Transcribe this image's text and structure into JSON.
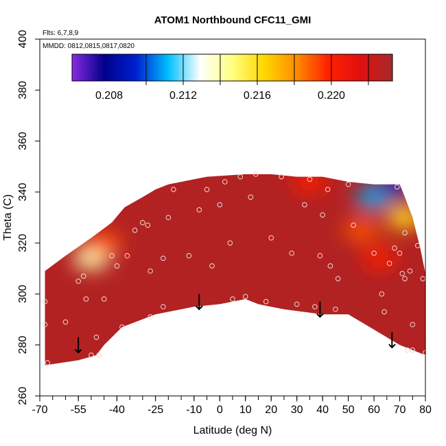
{
  "chart_data": {
    "type": "heatmap",
    "title": "ATOM1 Northbound CFC11_GMI",
    "annotations": [
      "Flts: 6,7,8,9",
      "MMDD: 0812,0815,0817,0820"
    ],
    "xlabel": "Latitude (deg N)",
    "ylabel": "Theta (C)",
    "xlim": [
      -70,
      80
    ],
    "ylim": [
      260,
      400
    ],
    "x_ticks": [
      -70,
      -55,
      -40,
      -25,
      -10,
      0,
      10,
      20,
      30,
      40,
      50,
      60,
      70,
      80
    ],
    "x_tick_labels": [
      "-70",
      "-55",
      "-40",
      "-25",
      "-10",
      "0",
      "10",
      "20",
      "30",
      "40",
      "50",
      "60",
      "70",
      "80"
    ],
    "x_minor_step": 5,
    "y_ticks": [
      260,
      280,
      300,
      320,
      340,
      360,
      380,
      400
    ],
    "y_tick_labels": [
      "260",
      "280",
      "300",
      "320",
      "340",
      "360",
      "380",
      "400"
    ],
    "colorbar": {
      "min": 0.206,
      "max": 0.2233,
      "tick_values": [
        0.208,
        0.212,
        0.216,
        0.22
      ],
      "tick_labels": [
        "0.208",
        "0.212",
        "0.216",
        "0.220"
      ],
      "divisions": [
        0.21,
        0.212,
        0.214,
        0.216,
        0.218,
        0.22,
        0.222
      ],
      "colors": [
        "#8a2be2",
        "#00008b",
        "#0020d0",
        "#00bfff",
        "#ffffff",
        "#ffff80",
        "#ffd700",
        "#ff8c00",
        "#ff2000",
        "#e01010",
        "#a52a2a"
      ]
    },
    "data_region": {
      "top_boundary": [
        [
          -68,
          309
        ],
        [
          -60,
          315
        ],
        [
          -50,
          322
        ],
        [
          -42,
          328
        ],
        [
          -37,
          334
        ],
        [
          -30,
          338
        ],
        [
          -25,
          341
        ],
        [
          -20,
          343
        ],
        [
          -10,
          345
        ],
        [
          -5,
          346
        ],
        [
          10,
          347
        ],
        [
          20,
          347
        ],
        [
          30,
          346
        ],
        [
          40,
          346
        ],
        [
          50,
          344
        ],
        [
          60,
          343
        ],
        [
          70,
          343
        ],
        [
          72,
          338
        ],
        [
          75,
          330
        ],
        [
          78,
          318
        ],
        [
          80,
          308
        ]
      ],
      "bottom_boundary": [
        [
          -68,
          272
        ],
        [
          -55,
          274
        ],
        [
          -48,
          276
        ],
        [
          -45,
          280
        ],
        [
          -38,
          287
        ],
        [
          -25,
          292
        ],
        [
          -10,
          295
        ],
        [
          0,
          296
        ],
        [
          10,
          298
        ],
        [
          15,
          296
        ],
        [
          25,
          294
        ],
        [
          40,
          292
        ],
        [
          50,
          292
        ],
        [
          60,
          286
        ],
        [
          70,
          280
        ],
        [
          80,
          276
        ]
      ],
      "fill_color": "#b22222",
      "features": [
        {
          "lon_lat_center": [
            -50,
            314
          ],
          "value": 0.214
        },
        {
          "lon_lat_center": [
            -45,
            320
          ],
          "value": 0.219
        },
        {
          "lon_lat_center": [
            35,
            344
          ],
          "value": 0.22
        },
        {
          "lon_lat_center": [
            60,
            338
          ],
          "value": 0.211
        },
        {
          "lon_lat_center": [
            68,
            342
          ],
          "value": 0.207
        },
        {
          "lon_lat_center": [
            72,
            330
          ],
          "value": 0.216
        },
        {
          "lon_lat_center": [
            55,
            325
          ],
          "value": 0.219
        },
        {
          "lon_lat_center": [
            62,
            314
          ],
          "value": 0.22
        }
      ]
    },
    "tropopause_arrows": [
      [
        -55,
        283
      ],
      [
        -8,
        300
      ],
      [
        39,
        297
      ],
      [
        67,
        285
      ]
    ],
    "observations": [
      {
        "x": -68,
        "y": 297
      },
      {
        "x": -68,
        "y": 288
      },
      {
        "x": -67,
        "y": 273
      },
      {
        "x": -60,
        "y": 289
      },
      {
        "x": -55,
        "y": 305
      },
      {
        "x": -53,
        "y": 307
      },
      {
        "x": -52,
        "y": 298
      },
      {
        "x": -50,
        "y": 276
      },
      {
        "x": -48,
        "y": 283
      },
      {
        "x": -47,
        "y": 276
      },
      {
        "x": -45,
        "y": 298
      },
      {
        "x": -42,
        "y": 315
      },
      {
        "x": -40,
        "y": 311
      },
      {
        "x": -38,
        "y": 287
      },
      {
        "x": -36,
        "y": 315
      },
      {
        "x": -33,
        "y": 325
      },
      {
        "x": -30,
        "y": 328
      },
      {
        "x": -28,
        "y": 327
      },
      {
        "x": -27,
        "y": 309
      },
      {
        "x": -27,
        "y": 291
      },
      {
        "x": -22,
        "y": 314
      },
      {
        "x": -22,
        "y": 295
      },
      {
        "x": -20,
        "y": 330
      },
      {
        "x": -18,
        "y": 341
      },
      {
        "x": -12,
        "y": 315
      },
      {
        "x": -8,
        "y": 333
      },
      {
        "x": -5,
        "y": 341
      },
      {
        "x": -3,
        "y": 311
      },
      {
        "x": 0,
        "y": 335
      },
      {
        "x": 2,
        "y": 344
      },
      {
        "x": 4,
        "y": 320
      },
      {
        "x": 5,
        "y": 298
      },
      {
        "x": 8,
        "y": 346
      },
      {
        "x": 10,
        "y": 299
      },
      {
        "x": 12,
        "y": 338
      },
      {
        "x": 14,
        "y": 347
      },
      {
        "x": 18,
        "y": 297
      },
      {
        "x": 20,
        "y": 322
      },
      {
        "x": 24,
        "y": 346
      },
      {
        "x": 28,
        "y": 316
      },
      {
        "x": 30,
        "y": 296
      },
      {
        "x": 33,
        "y": 335
      },
      {
        "x": 35,
        "y": 345
      },
      {
        "x": 37,
        "y": 295
      },
      {
        "x": 39,
        "y": 315
      },
      {
        "x": 40,
        "y": 331
      },
      {
        "x": 42,
        "y": 341
      },
      {
        "x": 43,
        "y": 311
      },
      {
        "x": 45,
        "y": 294
      },
      {
        "x": 46,
        "y": 306
      },
      {
        "x": 50,
        "y": 343
      },
      {
        "x": 52,
        "y": 327
      },
      {
        "x": 60,
        "y": 316
      },
      {
        "x": 63,
        "y": 300
      },
      {
        "x": 64,
        "y": 293
      },
      {
        "x": 66,
        "y": 312
      },
      {
        "x": 68,
        "y": 318
      },
      {
        "x": 69,
        "y": 342
      },
      {
        "x": 70,
        "y": 316
      },
      {
        "x": 71,
        "y": 308
      },
      {
        "x": 72,
        "y": 306
      },
      {
        "x": 72,
        "y": 324
      },
      {
        "x": 73,
        "y": 278
      },
      {
        "x": 74,
        "y": 309
      },
      {
        "x": 75,
        "y": 288
      },
      {
        "x": 75,
        "y": 278
      },
      {
        "x": 77,
        "y": 319
      },
      {
        "x": 79,
        "y": 306
      },
      {
        "x": 80,
        "y": 277
      }
    ]
  }
}
